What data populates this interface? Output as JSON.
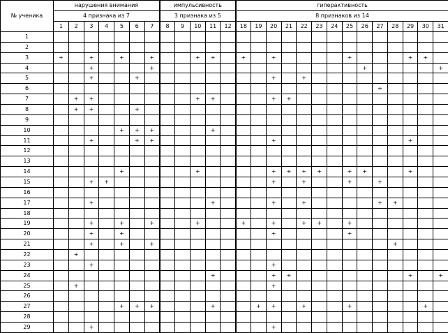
{
  "table": {
    "student_header": "№ ученика",
    "groups": [
      {
        "title": "нарушения внимания",
        "subtitle": "4 признака из 7",
        "columns": [
          "1",
          "2",
          "3",
          "4",
          "5",
          "6",
          "7"
        ]
      },
      {
        "title": "импульсивность",
        "subtitle": "3 признака из 5",
        "columns": [
          "8",
          "9",
          "10",
          "11",
          "12"
        ]
      },
      {
        "title": "гиперактивность",
        "subtitle": "8 признаков из 14",
        "columns": [
          "18",
          "19",
          "20",
          "21",
          "22",
          "23",
          "24",
          "25",
          "26",
          "27",
          "28",
          "29",
          "30",
          "31"
        ]
      }
    ],
    "rows": [
      {
        "num": "1",
        "marks": []
      },
      {
        "num": "2",
        "marks": []
      },
      {
        "num": "3",
        "marks": [
          "1",
          "3",
          "5",
          "7",
          "10",
          "11",
          "18",
          "20",
          "25",
          "29",
          "30"
        ]
      },
      {
        "num": "4",
        "marks": [
          "3",
          "7",
          "26",
          "31"
        ]
      },
      {
        "num": "5",
        "marks": [
          "3",
          "6",
          "20",
          "22"
        ]
      },
      {
        "num": "6",
        "marks": [
          "27"
        ]
      },
      {
        "num": "7",
        "marks": [
          "2",
          "3",
          "10",
          "11",
          "20",
          "21"
        ]
      },
      {
        "num": "8",
        "marks": [
          "2",
          "3",
          "6"
        ]
      },
      {
        "num": "9",
        "marks": []
      },
      {
        "num": "10",
        "marks": [
          "5",
          "6",
          "7",
          "11"
        ]
      },
      {
        "num": "11",
        "marks": [
          "3",
          "6",
          "7",
          "20",
          "29"
        ]
      },
      {
        "num": "12",
        "marks": []
      },
      {
        "num": "13",
        "marks": []
      },
      {
        "num": "14",
        "marks": [
          "5",
          "10",
          "20",
          "21",
          "22",
          "23",
          "25",
          "26",
          "29"
        ]
      },
      {
        "num": "15",
        "marks": [
          "3",
          "4",
          "20",
          "22",
          "25",
          "27"
        ]
      },
      {
        "num": "16",
        "marks": []
      },
      {
        "num": "17",
        "marks": [
          "3",
          "11",
          "20",
          "22",
          "27",
          "28"
        ]
      },
      {
        "num": "18",
        "marks": []
      },
      {
        "num": "19",
        "marks": [
          "3",
          "5",
          "7",
          "10",
          "18",
          "20",
          "22",
          "23",
          "25"
        ]
      },
      {
        "num": "20",
        "marks": [
          "3",
          "5",
          "20",
          "25"
        ]
      },
      {
        "num": "21",
        "marks": [
          "3",
          "5",
          "7",
          "28"
        ]
      },
      {
        "num": "22",
        "marks": [
          "2"
        ]
      },
      {
        "num": "23",
        "marks": [
          "3",
          "20"
        ]
      },
      {
        "num": "24",
        "marks": [
          "11",
          "20",
          "21",
          "29",
          "31"
        ]
      },
      {
        "num": "25",
        "marks": [
          "2",
          "20"
        ]
      },
      {
        "num": "26",
        "marks": []
      },
      {
        "num": "27",
        "marks": [
          "5",
          "6",
          "7",
          "11",
          "19",
          "20",
          "22",
          "25",
          "30"
        ]
      },
      {
        "num": "28",
        "marks": []
      },
      {
        "num": "29",
        "marks": [
          "3",
          "20"
        ]
      }
    ],
    "mark_symbol": "+"
  }
}
